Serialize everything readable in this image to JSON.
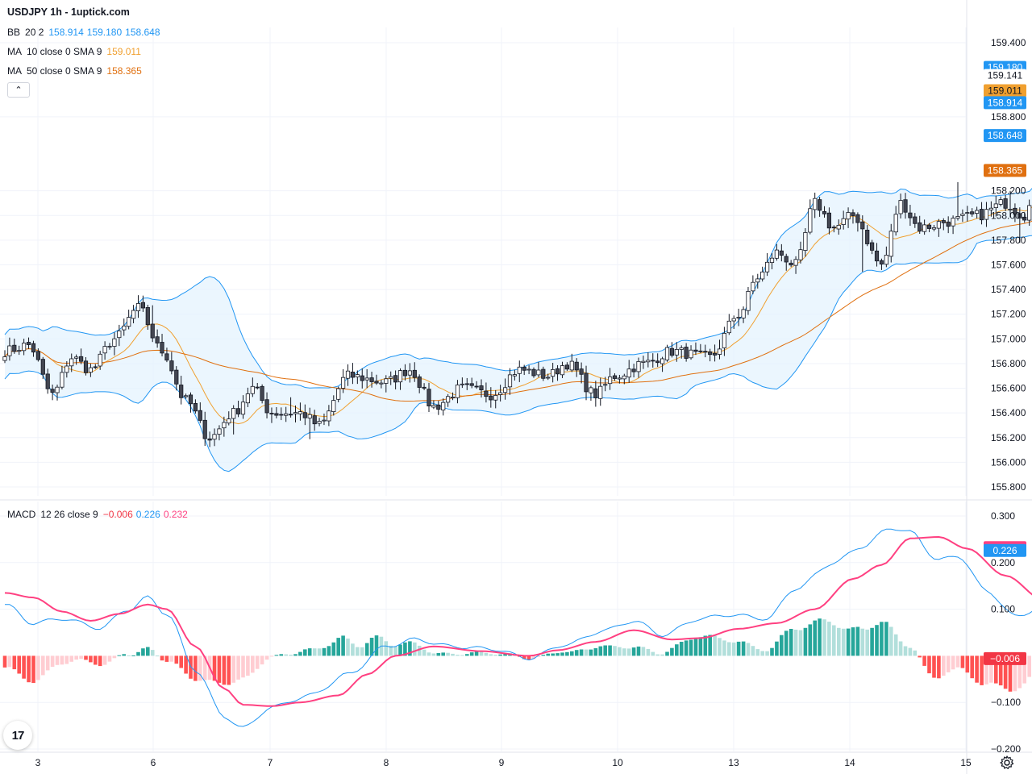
{
  "title": "USDJPY 1h - 1uptick.com",
  "legend": {
    "bb": {
      "label": "BB",
      "params": "20 2",
      "values": [
        "158.914",
        "159.180",
        "158.648"
      ],
      "color": "#2196f3"
    },
    "ma10": {
      "label": "MA",
      "params": "10 close 0 SMA 9",
      "value": "159.011",
      "color": "#f0a030"
    },
    "ma50": {
      "label": "MA",
      "params": "50 close 0 SMA 9",
      "value": "158.365",
      "color": "#e07010"
    },
    "macd": {
      "label": "MACD",
      "params": "12 26 close 9",
      "values": [
        "−0.006",
        "0.226",
        "0.232"
      ],
      "colors": [
        "#f23645",
        "#2196f3",
        "#ff4081"
      ]
    }
  },
  "icons": {
    "collapse": "chevron-up-icon",
    "logo": "tradingview-logo-icon",
    "settings": "gear-icon"
  },
  "colors": {
    "up": "#ffffff",
    "down": "#434651",
    "bb_line": "#2196f3",
    "bb_fill": "#e3f2fd",
    "ma10": "#f0a030",
    "ma50": "#e07010",
    "macd_line": "#2196f3",
    "signal_line": "#ff4081",
    "hist_up_strong": "#26a69a",
    "hist_up_weak": "#b2dfdb",
    "hist_down_strong": "#ff5252",
    "hist_down_weak": "#ffcdd2"
  },
  "chart_data": [
    {
      "type": "candlestick",
      "symbol": "USDJPY",
      "interval": "1h",
      "ylim": [
        155.75,
        159.5
      ],
      "y_ticks": [
        "159.400",
        "158.800",
        "158.200",
        "158.000",
        "157.800",
        "157.600",
        "157.400",
        "157.200",
        "157.000",
        "156.800",
        "156.600",
        "156.400",
        "156.200",
        "156.000",
        "155.800"
      ],
      "y_tick_values": [
        159.4,
        158.8,
        158.2,
        158.0,
        157.8,
        157.6,
        157.4,
        157.2,
        157.0,
        156.8,
        156.6,
        156.4,
        156.2,
        156.0,
        155.8
      ],
      "x_ticks": [
        "3",
        "6",
        "7",
        "8",
        "9",
        "10",
        "13",
        "14",
        "15"
      ],
      "price_labels": [
        {
          "text": "159.180",
          "value": 159.18,
          "bg": "#2196f3",
          "fg": "#ffffff"
        },
        {
          "text": "159.141",
          "value": 159.141,
          "bg": "#ffffff",
          "fg": "#131722"
        },
        {
          "text": "159.011",
          "value": 159.011,
          "bg": "#f0a030",
          "fg": "#131722"
        },
        {
          "text": "158.914",
          "value": 158.914,
          "bg": "#2196f3",
          "fg": "#ffffff"
        },
        {
          "text": "158.648",
          "value": 158.648,
          "bg": "#2196f3",
          "fg": "#ffffff"
        },
        {
          "text": "158.365",
          "value": 158.365,
          "bg": "#e07010",
          "fg": "#ffffff"
        }
      ],
      "close_anchors": [
        [
          0,
          156.9
        ],
        [
          5,
          156.95
        ],
        [
          10,
          156.55
        ],
        [
          14,
          156.85
        ],
        [
          18,
          156.75
        ],
        [
          23,
          157.0
        ],
        [
          28,
          157.25
        ],
        [
          33,
          156.9
        ],
        [
          38,
          156.5
        ],
        [
          43,
          156.2
        ],
        [
          48,
          156.4
        ],
        [
          52,
          156.6
        ],
        [
          56,
          156.4
        ],
        [
          62,
          156.4
        ],
        [
          66,
          156.3
        ],
        [
          72,
          156.7
        ],
        [
          80,
          156.65
        ],
        [
          85,
          156.75
        ],
        [
          90,
          156.45
        ],
        [
          96,
          156.6
        ],
        [
          102,
          156.55
        ],
        [
          108,
          156.75
        ],
        [
          114,
          156.7
        ],
        [
          118,
          156.8
        ],
        [
          124,
          156.55
        ],
        [
          128,
          156.7
        ],
        [
          134,
          156.8
        ],
        [
          140,
          156.9
        ],
        [
          148,
          156.85
        ],
        [
          154,
          157.2
        ],
        [
          158,
          157.5
        ],
        [
          162,
          157.7
        ],
        [
          166,
          157.6
        ],
        [
          170,
          158.1
        ],
        [
          174,
          157.9
        ],
        [
          178,
          158.0
        ],
        [
          184,
          157.6
        ],
        [
          188,
          158.1
        ],
        [
          192,
          157.9
        ],
        [
          198,
          157.95
        ],
        [
          204,
          158.0
        ],
        [
          210,
          158.1
        ],
        [
          214,
          158.0
        ],
        [
          218,
          158.8
        ],
        [
          222,
          158.7
        ],
        [
          228,
          158.95
        ],
        [
          234,
          158.75
        ],
        [
          238,
          159.0
        ],
        [
          244,
          159.15
        ]
      ],
      "wick_extra_hi": [
        [
          200,
          0.25
        ],
        [
          194,
          0.0
        ],
        [
          60,
          0.12
        ],
        [
          236,
          0.18
        ],
        [
          211,
          0.1
        ],
        [
          31,
          0.1
        ]
      ],
      "wick_extra_lo": [
        [
          64,
          0.1
        ],
        [
          180,
          0.28
        ],
        [
          213,
          0.15
        ],
        [
          236,
          0.25
        ],
        [
          48,
          0.1
        ]
      ]
    },
    {
      "type": "macd",
      "ylim": [
        -0.2,
        0.3
      ],
      "y_ticks": [
        "0.300",
        "0.200",
        "0.100",
        "−0.100",
        "−0.200"
      ],
      "y_tick_values": [
        0.3,
        0.2,
        0.1,
        -0.1,
        -0.2
      ],
      "price_labels": [
        {
          "text": "0.232",
          "value": 0.232,
          "bg": "#ff4081",
          "fg": "#ffffff"
        },
        {
          "text": "0.226",
          "value": 0.226,
          "bg": "#2196f3",
          "fg": "#ffffff"
        },
        {
          "text": "−0.006",
          "value": -0.006,
          "bg": "#f23645",
          "fg": "#ffffff"
        }
      ],
      "signal_anchors": [
        [
          0,
          0.135
        ],
        [
          6,
          0.125
        ],
        [
          12,
          0.095
        ],
        [
          18,
          0.075
        ],
        [
          24,
          0.09
        ],
        [
          30,
          0.11
        ],
        [
          34,
          0.1
        ],
        [
          40,
          0.02
        ],
        [
          46,
          -0.07
        ],
        [
          50,
          -0.105
        ],
        [
          56,
          -0.108
        ],
        [
          62,
          -0.1
        ],
        [
          70,
          -0.085
        ],
        [
          76,
          -0.04
        ],
        [
          82,
          0.0
        ],
        [
          90,
          0.02
        ],
        [
          100,
          0.01
        ],
        [
          110,
          0.0
        ],
        [
          116,
          0.012
        ],
        [
          124,
          0.03
        ],
        [
          132,
          0.055
        ],
        [
          140,
          0.035
        ],
        [
          146,
          0.038
        ],
        [
          154,
          0.058
        ],
        [
          162,
          0.07
        ],
        [
          170,
          0.1
        ],
        [
          178,
          0.165
        ],
        [
          184,
          0.195
        ],
        [
          190,
          0.252
        ],
        [
          196,
          0.255
        ],
        [
          202,
          0.23
        ],
        [
          210,
          0.172
        ],
        [
          218,
          0.12
        ],
        [
          226,
          0.105
        ],
        [
          232,
          0.105
        ],
        [
          236,
          0.11
        ],
        [
          242,
          0.18
        ],
        [
          248,
          0.234
        ],
        [
          254,
          0.236
        ],
        [
          260,
          0.232
        ]
      ],
      "macd_anchors": [
        [
          0,
          0.11
        ],
        [
          6,
          0.07
        ],
        [
          12,
          0.08
        ],
        [
          20,
          0.06
        ],
        [
          26,
          0.1
        ],
        [
          30,
          0.125
        ],
        [
          34,
          0.09
        ],
        [
          40,
          -0.03
        ],
        [
          46,
          -0.13
        ],
        [
          50,
          -0.155
        ],
        [
          56,
          -0.11
        ],
        [
          64,
          -0.085
        ],
        [
          72,
          -0.04
        ],
        [
          80,
          0.02
        ],
        [
          86,
          0.035
        ],
        [
          94,
          0.02
        ],
        [
          102,
          0.015
        ],
        [
          110,
          -0.005
        ],
        [
          118,
          0.025
        ],
        [
          126,
          0.055
        ],
        [
          132,
          0.075
        ],
        [
          138,
          0.045
        ],
        [
          146,
          0.08
        ],
        [
          152,
          0.088
        ],
        [
          160,
          0.08
        ],
        [
          166,
          0.145
        ],
        [
          174,
          0.2
        ],
        [
          180,
          0.235
        ],
        [
          186,
          0.275
        ],
        [
          190,
          0.265
        ],
        [
          196,
          0.205
        ],
        [
          200,
          0.215
        ],
        [
          206,
          0.14
        ],
        [
          212,
          0.085
        ],
        [
          218,
          0.105
        ],
        [
          224,
          0.108
        ],
        [
          230,
          0.095
        ],
        [
          236,
          0.185
        ],
        [
          242,
          0.263
        ],
        [
          248,
          0.24
        ],
        [
          254,
          0.228
        ],
        [
          260,
          0.226
        ]
      ]
    }
  ]
}
